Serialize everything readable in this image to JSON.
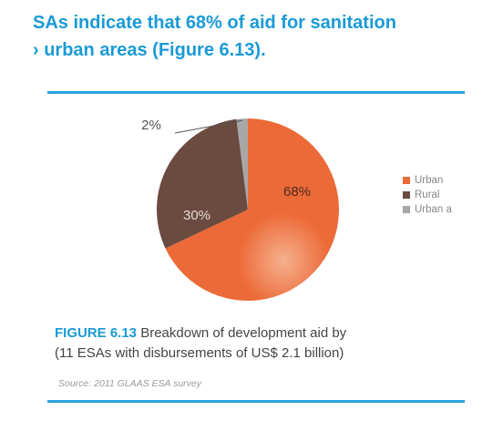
{
  "headline": {
    "line1": "SAs indicate that 68% of aid for sanitation",
    "line2": "› urban areas (Figure 6.13)."
  },
  "colors": {
    "accent": "#1a9ad6",
    "urban": "#ec6a37",
    "rural": "#6b4a40",
    "other": "#a7a7a7"
  },
  "chart_data": {
    "type": "pie",
    "title": "",
    "categories": [
      "Urban",
      "Rural",
      "Urban a"
    ],
    "values": [
      68,
      30,
      2
    ],
    "data_labels": [
      "68%",
      "30%",
      "2%"
    ],
    "legend": {
      "placement": "right",
      "entries": [
        "Urban",
        "Rural",
        "Urban a"
      ]
    }
  },
  "caption": {
    "figure_label": "FIGURE 6.13",
    "text": "Breakdown of development aid by",
    "line2": "(11 ESAs with disbursements of US$ 2.1 billion)"
  },
  "source": "Source: 2011 GLAAS ESA survey"
}
